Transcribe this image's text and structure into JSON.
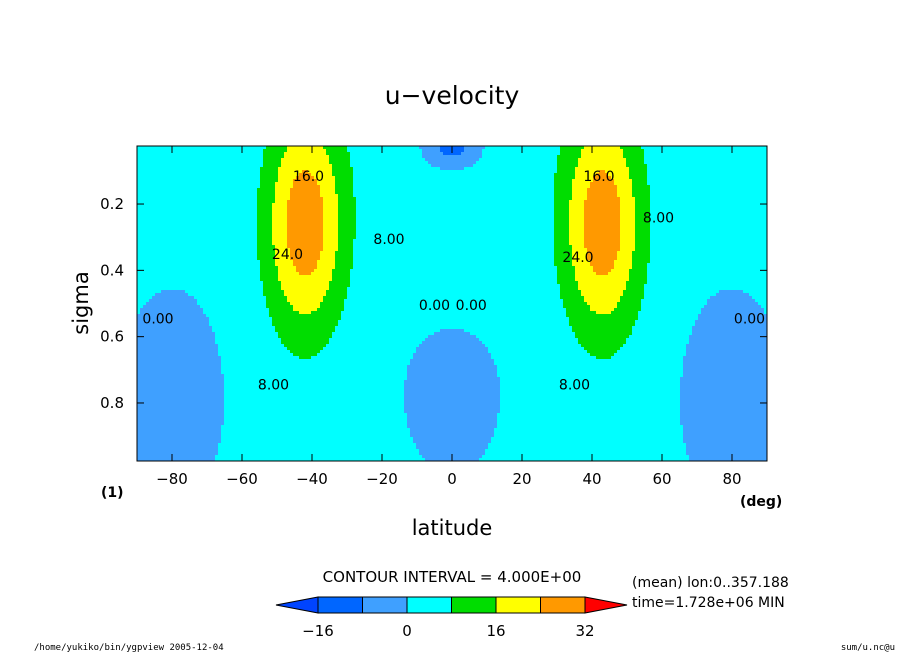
{
  "chart_data": {
    "type": "contour",
    "title": "u−velocity",
    "xlabel": "latitude",
    "xunit": "(deg)",
    "ylabel": "sigma",
    "panel_label": "(1)",
    "xlim": [
      -90,
      90
    ],
    "ylim": [
      0.025,
      0.975
    ],
    "y_axis_inverted": true,
    "x_ticks": [
      "−80",
      "−60",
      "−40",
      "−20",
      "0",
      "20",
      "40",
      "60",
      "80"
    ],
    "x_tick_values": [
      -80,
      -60,
      -40,
      -20,
      0,
      20,
      40,
      60,
      80
    ],
    "y_ticks": [
      "0.2",
      "0.4",
      "0.6",
      "0.8"
    ],
    "y_tick_values": [
      0.2,
      0.4,
      0.6,
      0.8
    ],
    "contour_interval_text": "CONTOUR INTERVAL = 4.000E+00",
    "contour_labels": [
      {
        "text": "16.0",
        "lat": -41,
        "sigma": 0.115
      },
      {
        "text": "16.0",
        "lat": 42,
        "sigma": 0.115
      },
      {
        "text": "24.0",
        "lat": -47,
        "sigma": 0.35
      },
      {
        "text": "24.0",
        "lat": 36,
        "sigma": 0.36
      },
      {
        "text": "8.00",
        "lat": -18,
        "sigma": 0.305
      },
      {
        "text": "8.00",
        "lat": 59,
        "sigma": 0.24
      },
      {
        "text": "8.00",
        "lat": -51,
        "sigma": 0.745
      },
      {
        "text": "8.00",
        "lat": 35,
        "sigma": 0.745
      },
      {
        "text": "0.00",
        "lat": -5,
        "sigma": 0.505
      },
      {
        "text": "0.00",
        "lat": 5.5,
        "sigma": 0.505
      },
      {
        "text": "0.00",
        "lat": -84,
        "sigma": 0.545
      },
      {
        "text": "0.00",
        "lat": 85,
        "sigma": 0.545
      }
    ],
    "jets": [
      {
        "center_lat": -42,
        "center_sigma": 0.26,
        "max_u": 28
      },
      {
        "center_lat": 43,
        "center_sigma": 0.26,
        "max_u": 28
      }
    ],
    "colorbar": {
      "tick_labels": [
        "−16",
        "0",
        "16",
        "32"
      ],
      "tick_values": [
        -16,
        0,
        16,
        32
      ],
      "levels": [
        -16,
        -8,
        0,
        8,
        16,
        24,
        32
      ],
      "colors": [
        "#0044ff",
        "#0066ff",
        "#3fa0ff",
        "#00ffff",
        "#00dd00",
        "#ffff00",
        "#ff9900",
        "#ff0000"
      ]
    },
    "info_lines": [
      "(mean) lon:0..357.188",
      "time=1.728e+06 MIN"
    ]
  },
  "footer": {
    "path_text": "/home/yukiko/bin/ygpview  2005-12-04",
    "file_text": "sum/u.nc@u"
  }
}
